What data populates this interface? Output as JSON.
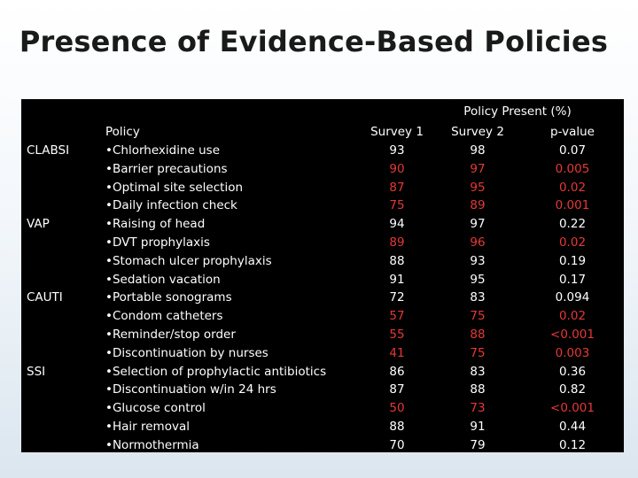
{
  "title": "Presence of Evidence-Based Policies",
  "colors": {
    "significant": "#e53935",
    "normal": "#ffffff",
    "panel": "#000000"
  },
  "table": {
    "group_header": "Policy Present (%)",
    "headers": {
      "policy": "Policy",
      "survey1": "Survey 1",
      "survey2": "Survey 2",
      "pvalue": "p-value"
    },
    "rows": [
      {
        "category": "CLABSI",
        "policy": "•Chlorhexidine use",
        "s1": "93",
        "s2": "98",
        "p": "0.07",
        "sig": false
      },
      {
        "category": "",
        "policy": "•Barrier precautions",
        "s1": "90",
        "s2": "97",
        "p": "0.005",
        "sig": true
      },
      {
        "category": "",
        "policy": "•Optimal site selection",
        "s1": "87",
        "s2": "95",
        "p": "0.02",
        "sig": true
      },
      {
        "category": "",
        "policy": "•Daily infection check",
        "s1": "75",
        "s2": "89",
        "p": "0.001",
        "sig": true
      },
      {
        "category": "VAP",
        "policy": "•Raising of head",
        "s1": "94",
        "s2": "97",
        "p": "0.22",
        "sig": false
      },
      {
        "category": "",
        "policy": "•DVT prophylaxis",
        "s1": "89",
        "s2": "96",
        "p": "0.02",
        "sig": true
      },
      {
        "category": "",
        "policy": "•Stomach ulcer prophylaxis",
        "s1": "88",
        "s2": "93",
        "p": "0.19",
        "sig": false
      },
      {
        "category": "",
        "policy": "•Sedation vacation",
        "s1": "91",
        "s2": "95",
        "p": "0.17",
        "sig": false
      },
      {
        "category": "CAUTI",
        "policy": "•Portable sonograms",
        "s1": "72",
        "s2": "83",
        "p": "0.094",
        "sig": false
      },
      {
        "category": "",
        "policy": "•Condom catheters",
        "s1": "57",
        "s2": "75",
        "p": "0.02",
        "sig": true
      },
      {
        "category": "",
        "policy": "•Reminder/stop order",
        "s1": "55",
        "s2": "88",
        "p": "<0.001",
        "sig": true
      },
      {
        "category": "",
        "policy": "•Discontinuation by nurses",
        "s1": "41",
        "s2": "75",
        "p": "0.003",
        "sig": true
      },
      {
        "category": "SSI",
        "policy": "•Selection of prophylactic antibiotics",
        "s1": "86",
        "s2": "83",
        "p": "0.36",
        "sig": false
      },
      {
        "category": "",
        "policy": "•Discontinuation w/in 24 hrs",
        "s1": "87",
        "s2": "88",
        "p": "0.82",
        "sig": false
      },
      {
        "category": "",
        "policy": "•Glucose control",
        "s1": "50",
        "s2": "73",
        "p": "<0.001",
        "sig": true
      },
      {
        "category": "",
        "policy": "•Hair removal",
        "s1": "88",
        "s2": "91",
        "p": "0.44",
        "sig": false
      },
      {
        "category": "",
        "policy": "•Normothermia",
        "s1": "70",
        "s2": "79",
        "p": "0.12",
        "sig": false
      }
    ]
  }
}
